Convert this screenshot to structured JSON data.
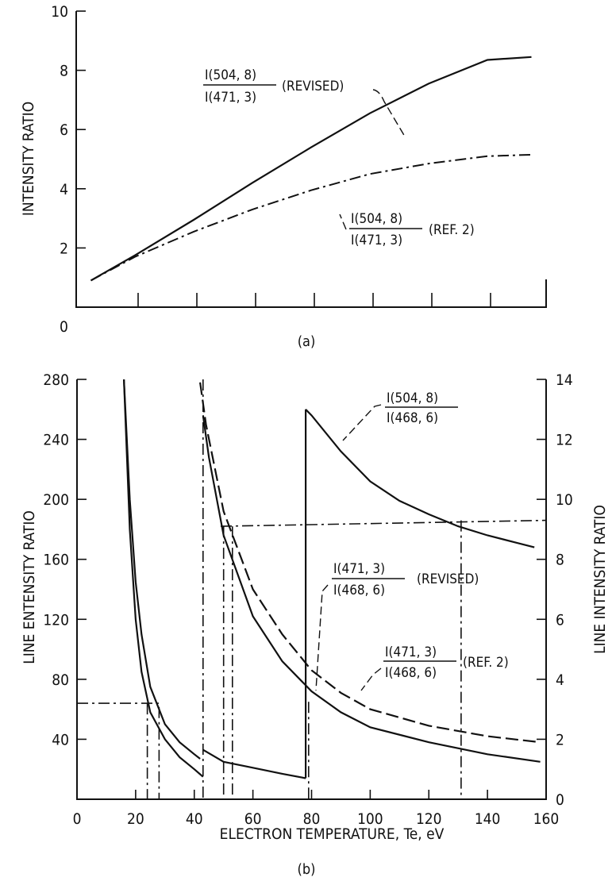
{
  "chart_data": [
    {
      "panel": "(a)",
      "type": "line",
      "xlabel": "",
      "ylabel": "INTENSITY RATIO",
      "ylim": [
        0,
        10
      ],
      "x_origin_label": "0",
      "ytick_labels": [
        "2",
        "4",
        "6",
        "8",
        "10"
      ],
      "grid": false,
      "series": [
        {
          "style": "solid",
          "annotation": {
            "numerator": "I(504, 8)",
            "denominator": "I(471, 3)",
            "suffix": "(REVISED)"
          },
          "x": [
            5,
            20,
            40,
            60,
            80,
            100,
            120,
            140,
            155
          ],
          "y": [
            0.9,
            1.75,
            2.95,
            4.2,
            5.4,
            6.55,
            7.55,
            8.35,
            8.45
          ]
        },
        {
          "style": "dashdot",
          "annotation": {
            "numerator": "I(504, 8)",
            "denominator": "I(471, 3)",
            "suffix": "(REF. 2)"
          },
          "x": [
            5,
            20,
            40,
            60,
            80,
            100,
            120,
            140,
            155
          ],
          "y": [
            0.9,
            1.7,
            2.55,
            3.3,
            3.95,
            4.5,
            4.85,
            5.1,
            5.15
          ]
        }
      ]
    },
    {
      "panel": "(b)",
      "type": "line",
      "xlabel": "ELECTRON TEMPERATURE, Te, eV",
      "ylabel_left": "LINE ENTENSITY RATIO",
      "ylabel_right": "LINE INTENSITY RATIO",
      "xlim": [
        0,
        160
      ],
      "ylim_left": [
        0,
        280
      ],
      "ylim_right": [
        0,
        14
      ],
      "xtick_labels": [
        "0",
        "20",
        "40",
        "60",
        "80",
        "100",
        "120",
        "140",
        "160"
      ],
      "ytick_labels_left": [
        "40",
        "80",
        "120",
        "160",
        "200",
        "240",
        "280"
      ],
      "ytick_labels_right": [
        "0",
        "2",
        "4",
        "6",
        "8",
        "10",
        "12",
        "14"
      ],
      "grid": false,
      "series": [
        {
          "axis": "right",
          "style": "solid",
          "annotation": {
            "numerator": "I(504, 8)",
            "denominator": "I(468, 6)"
          },
          "x": [
            78,
            80,
            90,
            100,
            110,
            120,
            130,
            140,
            150,
            156
          ],
          "y": [
            13.0,
            12.8,
            11.6,
            10.6,
            9.95,
            9.5,
            9.1,
            8.8,
            8.55,
            8.4
          ]
        },
        {
          "axis": "right",
          "style": "dashed",
          "annotation": {
            "numerator": "I(471, 3)",
            "denominator": "I(468, 6)",
            "suffix": "(REVISED)"
          },
          "x": [
            42,
            44,
            50,
            60,
            70,
            80,
            90,
            100,
            120,
            140,
            158
          ],
          "y": [
            13.9,
            12.5,
            9.6,
            7.0,
            5.5,
            4.3,
            3.55,
            3.0,
            2.45,
            2.1,
            1.9
          ]
        },
        {
          "axis": "right",
          "style": "solid",
          "annotation": {
            "numerator": "I(471, 3)",
            "denominator": "I(468, 6)",
            "suffix": "(REF. 2)"
          },
          "x": [
            43,
            45,
            50,
            60,
            70,
            80,
            90,
            100,
            120,
            140,
            158
          ],
          "y": [
            12.8,
            11.4,
            8.8,
            6.1,
            4.6,
            3.6,
            2.9,
            2.4,
            1.9,
            1.5,
            1.25
          ]
        },
        {
          "axis": "left",
          "style": "solid",
          "segments": [
            {
              "x": [
                16,
                18,
                20,
                22,
                25,
                30,
                35,
                40,
                43
              ],
              "y": [
                280,
                180,
                120,
                85,
                58,
                40,
                28,
                20,
                15
              ]
            },
            {
              "x": [
                43,
                50,
                60,
                70,
                78
              ],
              "y": [
                33,
                25,
                21,
                17,
                14
              ]
            }
          ]
        },
        {
          "axis": "left",
          "style": "solid",
          "x": [
            16,
            18,
            20,
            22,
            25,
            30,
            35,
            40,
            42
          ],
          "y": [
            280,
            200,
            145,
            110,
            75,
            50,
            38,
            30,
            27
          ]
        }
      ],
      "reference_lines": [
        {
          "style": "dashdot",
          "points": [
            [
              0,
              64
            ],
            [
              28,
              64
            ],
            [
              28,
              0
            ]
          ]
        },
        {
          "style": "dashdot",
          "points": [
            [
              24,
              64
            ],
            [
              24,
              0
            ]
          ]
        },
        {
          "style": "dashdot",
          "points": [
            [
              43,
              280
            ],
            [
              43,
              0
            ]
          ]
        },
        {
          "style": "dashdot",
          "points": [
            [
              49,
              182
            ],
            [
              160,
              186
            ]
          ]
        },
        {
          "style": "dashdot",
          "points": [
            [
              50,
              182
            ],
            [
              50,
              0
            ]
          ]
        },
        {
          "style": "dashdot",
          "points": [
            [
              53,
              182
            ],
            [
              53,
              0
            ]
          ]
        },
        {
          "style": "dashdot",
          "points": [
            [
              79,
              65
            ],
            [
              79,
              0
            ]
          ]
        },
        {
          "style": "dashdot",
          "points": [
            [
              131,
              186
            ],
            [
              131,
              0
            ]
          ]
        }
      ]
    }
  ],
  "captions": {
    "a": "(a)",
    "b": "(b)"
  }
}
